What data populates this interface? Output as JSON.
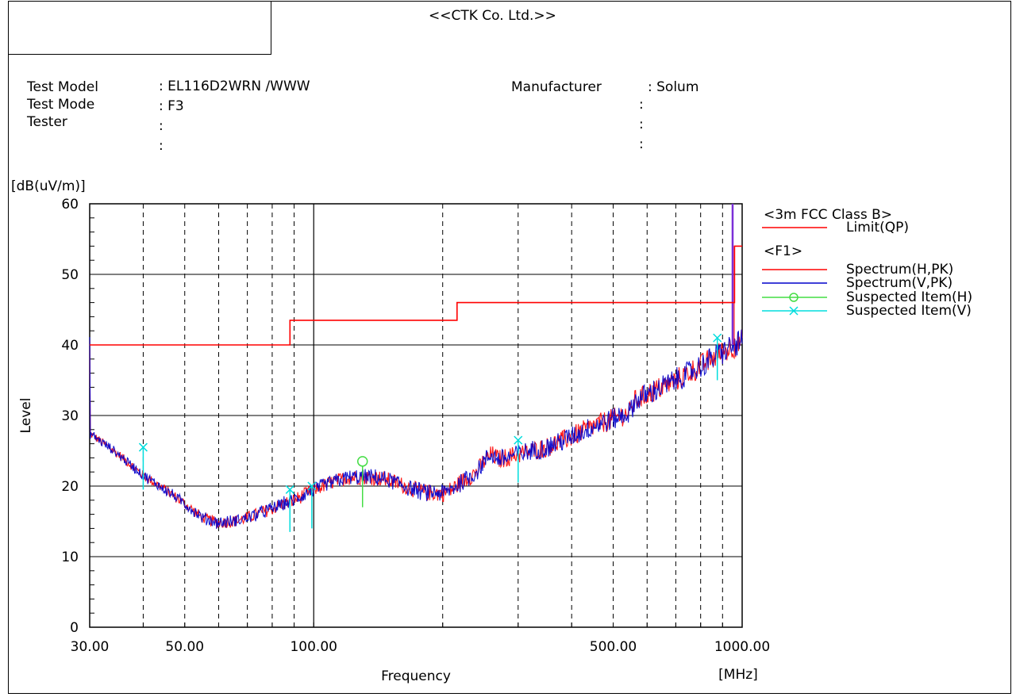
{
  "header": {
    "company": "<<CTK Co. Ltd.>>"
  },
  "info": {
    "test_model_label": "Test Model",
    "test_mode_label": "Test Mode",
    "tester_label": "Tester",
    "test_model_value": ": EL116D2WRN /WWW",
    "test_mode_value": ": F3",
    "manufacturer_label": "Manufacturer",
    "manufacturer_value": ": Solum"
  },
  "chart_data": {
    "type": "line",
    "title": "",
    "ylabel": "Level",
    "yunit": "[dB(uV/m)]",
    "xlabel": "Frequency",
    "xunit": "[MHz]",
    "x_scale": "log",
    "xlim": [
      30,
      1000
    ],
    "ylim": [
      0,
      60
    ],
    "y_ticks": [
      "0",
      "10",
      "20",
      "30",
      "40",
      "50",
      "60"
    ],
    "x_tick_labels": [
      {
        "value": 30,
        "label": "30.00"
      },
      {
        "value": 50,
        "label": "50.00"
      },
      {
        "value": 100,
        "label": "100.00"
      },
      {
        "value": 500,
        "label": "500.00"
      },
      {
        "value": 1000,
        "label": "1000.00"
      }
    ],
    "x_minor_grid": [
      40,
      50,
      60,
      70,
      80,
      90,
      200,
      300,
      400,
      500,
      600,
      700,
      800,
      900
    ],
    "x_major_grid": [
      100
    ],
    "y_grid": [
      10,
      20,
      30,
      40,
      50
    ],
    "legend": {
      "placement": "right",
      "group1": "<3m FCC Class B>",
      "group2": "<F1>",
      "entries": [
        {
          "name": "Limit(QP)",
          "color": "#ff0000",
          "marker": "none"
        },
        {
          "name": "Spectrum(H,PK)",
          "color": "#ff0000",
          "marker": "none"
        },
        {
          "name": "Spectrum(V,PK)",
          "color": "#0000cc",
          "marker": "none"
        },
        {
          "name": "Suspected Item(H)",
          "color": "#44dd44",
          "marker": "circle"
        },
        {
          "name": "Suspected Item(V)",
          "color": "#00dddd",
          "marker": "x"
        }
      ]
    },
    "limit": [
      [
        30,
        40
      ],
      [
        88,
        40
      ],
      [
        88,
        43.5
      ],
      [
        216,
        43.5
      ],
      [
        216,
        46
      ],
      [
        960,
        46
      ],
      [
        960,
        54
      ],
      [
        1000,
        54
      ]
    ],
    "spectrum_envelope": [
      [
        30,
        27.5
      ],
      [
        35,
        24.5
      ],
      [
        40,
        21.5
      ],
      [
        45,
        19.5
      ],
      [
        50,
        17.5
      ],
      [
        55,
        15.5
      ],
      [
        60,
        14.8
      ],
      [
        65,
        15.0
      ],
      [
        70,
        15.5
      ],
      [
        75,
        16.2
      ],
      [
        80,
        16.8
      ],
      [
        85,
        17.5
      ],
      [
        90,
        18.0
      ],
      [
        100,
        19.5
      ],
      [
        110,
        20.5
      ],
      [
        120,
        21.2
      ],
      [
        130,
        21.3
      ],
      [
        140,
        21.2
      ],
      [
        150,
        20.8
      ],
      [
        160,
        20.2
      ],
      [
        170,
        19.6
      ],
      [
        180,
        19.1
      ],
      [
        200,
        19.0
      ],
      [
        210,
        19.5
      ],
      [
        220,
        20.5
      ],
      [
        240,
        22.0
      ],
      [
        250,
        23.5
      ],
      [
        260,
        24.5
      ],
      [
        270,
        23.8
      ],
      [
        280,
        24.0
      ],
      [
        300,
        24.5
      ],
      [
        350,
        25.5
      ],
      [
        400,
        27.0
      ],
      [
        450,
        28.5
      ],
      [
        500,
        29.5
      ],
      [
        550,
        30.5
      ],
      [
        560,
        32.0
      ],
      [
        600,
        33.0
      ],
      [
        700,
        35.0
      ],
      [
        800,
        37.0
      ],
      [
        900,
        39.0
      ],
      [
        1000,
        40.5
      ]
    ],
    "spike_v": {
      "x": 950,
      "y_low": 40,
      "y_high": 60
    },
    "suspected_h": [
      {
        "x": 130,
        "y": 23.5,
        "y_low": 17.0
      }
    ],
    "suspected_v": [
      {
        "x": 40,
        "y": 25.5,
        "y_low": 19.5
      },
      {
        "x": 88,
        "y": 19.5,
        "y_low": 13.5
      },
      {
        "x": 99,
        "y": 20.0,
        "y_low": 14.0
      },
      {
        "x": 300,
        "y": 26.5,
        "y_low": 20.5
      },
      {
        "x": 875,
        "y": 41.0,
        "y_low": 35.0
      }
    ]
  }
}
